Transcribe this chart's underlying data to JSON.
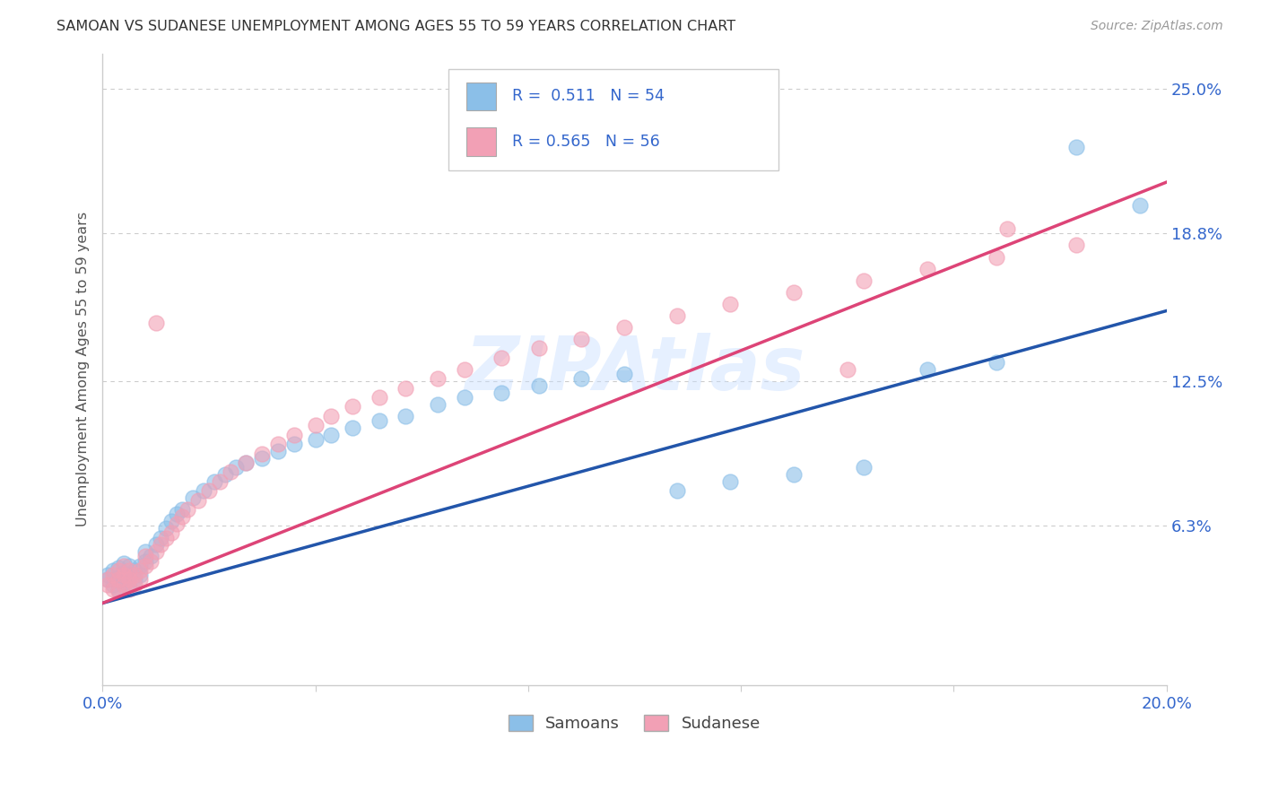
{
  "title": "SAMOAN VS SUDANESE UNEMPLOYMENT AMONG AGES 55 TO 59 YEARS CORRELATION CHART",
  "source": "Source: ZipAtlas.com",
  "ylabel": "Unemployment Among Ages 55 to 59 years",
  "xlim": [
    0.0,
    0.2
  ],
  "ylim": [
    -0.005,
    0.265
  ],
  "xticks": [
    0.0,
    0.04,
    0.08,
    0.12,
    0.16,
    0.2
  ],
  "xticklabels": [
    "0.0%",
    "",
    "",
    "",
    "",
    "20.0%"
  ],
  "ytick_positions": [
    0.063,
    0.125,
    0.188,
    0.25
  ],
  "ytick_labels": [
    "6.3%",
    "12.5%",
    "18.8%",
    "25.0%"
  ],
  "samoans_color": "#8BBFE8",
  "sudanese_color": "#F2A0B5",
  "samoans_line_color": "#2255AA",
  "sudanese_line_color": "#DD4477",
  "R_samoans": 0.511,
  "N_samoans": 54,
  "R_sudanese": 0.565,
  "N_sudanese": 56,
  "legend_labels": [
    "Samoans",
    "Sudanese"
  ],
  "watermark": "ZIPAtlas",
  "background_color": "#ffffff",
  "samoans_x": [
    0.001,
    0.001,
    0.002,
    0.002,
    0.003,
    0.003,
    0.003,
    0.004,
    0.004,
    0.004,
    0.005,
    0.005,
    0.005,
    0.006,
    0.006,
    0.007,
    0.007,
    0.008,
    0.008,
    0.009,
    0.01,
    0.011,
    0.012,
    0.013,
    0.014,
    0.015,
    0.017,
    0.019,
    0.021,
    0.023,
    0.025,
    0.027,
    0.03,
    0.033,
    0.036,
    0.04,
    0.043,
    0.047,
    0.052,
    0.057,
    0.063,
    0.068,
    0.075,
    0.082,
    0.09,
    0.098,
    0.108,
    0.118,
    0.13,
    0.143,
    0.155,
    0.168,
    0.183,
    0.195
  ],
  "samoans_y": [
    0.04,
    0.042,
    0.038,
    0.044,
    0.036,
    0.041,
    0.045,
    0.039,
    0.043,
    0.047,
    0.038,
    0.042,
    0.046,
    0.04,
    0.044,
    0.042,
    0.046,
    0.048,
    0.052,
    0.05,
    0.055,
    0.058,
    0.062,
    0.065,
    0.068,
    0.07,
    0.075,
    0.078,
    0.082,
    0.085,
    0.088,
    0.09,
    0.092,
    0.095,
    0.098,
    0.1,
    0.102,
    0.105,
    0.108,
    0.11,
    0.115,
    0.118,
    0.12,
    0.123,
    0.126,
    0.128,
    0.078,
    0.082,
    0.085,
    0.088,
    0.13,
    0.133,
    0.225,
    0.2
  ],
  "sudanese_x": [
    0.001,
    0.001,
    0.002,
    0.002,
    0.003,
    0.003,
    0.003,
    0.004,
    0.004,
    0.004,
    0.005,
    0.005,
    0.005,
    0.006,
    0.006,
    0.007,
    0.007,
    0.008,
    0.008,
    0.009,
    0.01,
    0.011,
    0.012,
    0.013,
    0.014,
    0.015,
    0.016,
    0.018,
    0.02,
    0.022,
    0.024,
    0.027,
    0.03,
    0.033,
    0.036,
    0.04,
    0.043,
    0.047,
    0.052,
    0.057,
    0.063,
    0.068,
    0.075,
    0.082,
    0.09,
    0.098,
    0.108,
    0.118,
    0.13,
    0.143,
    0.155,
    0.168,
    0.183,
    0.01,
    0.14,
    0.17
  ],
  "sudanese_y": [
    0.038,
    0.04,
    0.036,
    0.042,
    0.035,
    0.04,
    0.044,
    0.038,
    0.042,
    0.046,
    0.036,
    0.04,
    0.044,
    0.038,
    0.042,
    0.04,
    0.044,
    0.046,
    0.05,
    0.048,
    0.052,
    0.055,
    0.058,
    0.06,
    0.064,
    0.067,
    0.07,
    0.074,
    0.078,
    0.082,
    0.086,
    0.09,
    0.094,
    0.098,
    0.102,
    0.106,
    0.11,
    0.114,
    0.118,
    0.122,
    0.126,
    0.13,
    0.135,
    0.139,
    0.143,
    0.148,
    0.153,
    0.158,
    0.163,
    0.168,
    0.173,
    0.178,
    0.183,
    0.15,
    0.13,
    0.19
  ]
}
